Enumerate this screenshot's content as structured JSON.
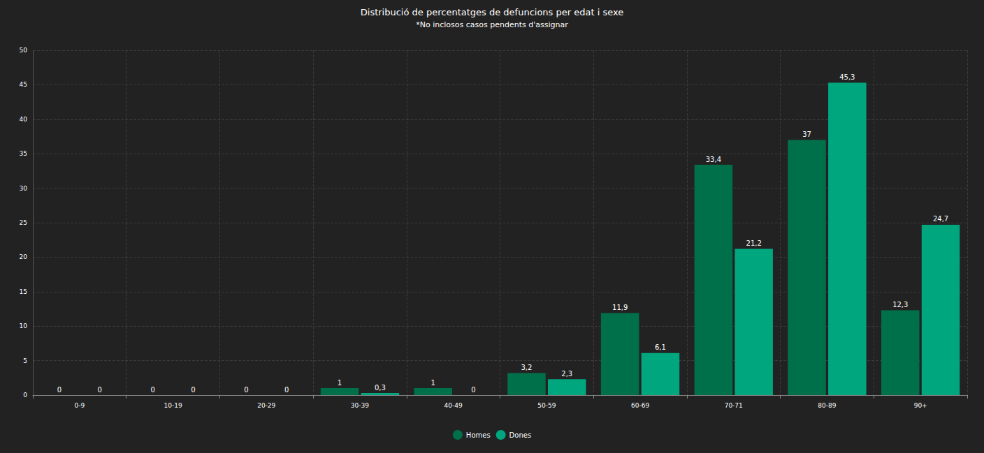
{
  "chart_data": {
    "type": "bar",
    "title": "Distribució de percentatges de defuncions per edat i sexe",
    "subtitle": "*No inclosos casos pendents d'assignar",
    "categories": [
      "0-9",
      "10-19",
      "20-29",
      "30-39",
      "40-49",
      "50-59",
      "60-69",
      "70-71",
      "80-89",
      "90+"
    ],
    "series": [
      {
        "name": "Homes",
        "color": "#00704a",
        "values": [
          0,
          0,
          0,
          1,
          1,
          3.2,
          11.9,
          33.4,
          37,
          12.3
        ],
        "value_labels": [
          "0",
          "0",
          "0",
          "1",
          "1",
          "3,2",
          "11,9",
          "33,4",
          "37",
          "12,3"
        ]
      },
      {
        "name": "Dones",
        "color": "#00a67e",
        "values": [
          0,
          0,
          0,
          0.3,
          0,
          2.3,
          6.1,
          21.2,
          45.3,
          24.7
        ],
        "value_labels": [
          "0",
          "0",
          "0",
          "0,3",
          "0",
          "2,3",
          "6,1",
          "21,2",
          "45,3",
          "24,7"
        ]
      }
    ],
    "ylim": [
      0,
      50
    ],
    "yticks": [
      0,
      5,
      10,
      15,
      20,
      25,
      30,
      35,
      40,
      45,
      50
    ],
    "grid": true,
    "legend": "bottom",
    "data_labels": true
  }
}
